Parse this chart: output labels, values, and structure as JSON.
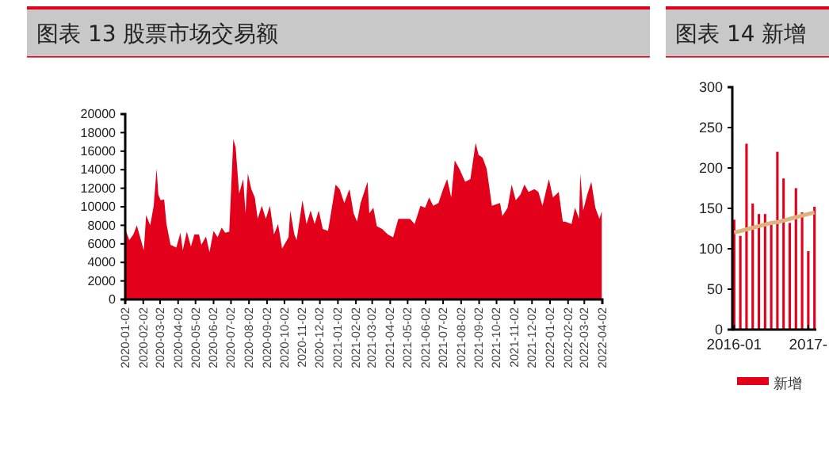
{
  "chart_data": [
    {
      "type": "area",
      "title": "图表 13 股票市场交易额",
      "color": "#e2001a",
      "x": [
        "2020-01-02",
        "2020-01-09",
        "2020-01-16",
        "2020-01-22",
        "2020-02-03",
        "2020-02-07",
        "2020-02-14",
        "2020-02-20",
        "2020-02-25",
        "2020-02-28",
        "2020-03-03",
        "2020-03-09",
        "2020-03-13",
        "2020-03-20",
        "2020-03-30",
        "2020-04-06",
        "2020-04-10",
        "2020-04-17",
        "2020-04-24",
        "2020-04-30",
        "2020-05-08",
        "2020-05-12",
        "2020-05-20",
        "2020-05-26",
        "2020-06-02",
        "2020-06-09",
        "2020-06-16",
        "2020-06-22",
        "2020-06-29",
        "2020-07-06",
        "2020-07-10",
        "2020-07-16",
        "2020-07-23",
        "2020-07-27",
        "2020-07-31",
        "2020-08-06",
        "2020-08-12",
        "2020-08-17",
        "2020-08-24",
        "2020-08-31",
        "2020-09-07",
        "2020-09-14",
        "2020-09-21",
        "2020-09-28",
        "2020-10-09",
        "2020-10-12",
        "2020-10-19",
        "2020-10-23",
        "2020-11-02",
        "2020-11-09",
        "2020-11-16",
        "2020-11-23",
        "2020-11-30",
        "2020-12-07",
        "2020-12-16",
        "2020-12-21",
        "2020-12-29",
        "2021-01-05",
        "2021-01-13",
        "2021-01-20",
        "2021-01-22",
        "2021-01-29",
        "2021-02-04",
        "2021-02-10",
        "2021-02-22",
        "2021-02-25",
        "2021-03-04",
        "2021-03-10",
        "2021-03-19",
        "2021-03-29",
        "2021-04-07",
        "2021-04-16",
        "2021-04-26",
        "2021-05-06",
        "2021-05-14",
        "2021-05-24",
        "2021-06-01",
        "2021-06-08",
        "2021-06-15",
        "2021-06-24",
        "2021-07-02",
        "2021-07-09",
        "2021-07-16",
        "2021-07-22",
        "2021-07-30",
        "2021-08-09",
        "2021-08-18",
        "2021-08-27",
        "2021-09-01",
        "2021-09-08",
        "2021-09-15",
        "2021-09-24",
        "2021-10-08",
        "2021-10-12",
        "2021-10-21",
        "2021-10-28",
        "2021-11-04",
        "2021-11-12",
        "2021-11-19",
        "2021-11-26",
        "2021-12-06",
        "2021-12-13",
        "2021-12-20",
        "2021-12-31",
        "2022-01-07",
        "2022-01-17",
        "2022-01-24",
        "2022-01-28",
        "2022-02-08",
        "2022-02-14",
        "2022-02-21",
        "2022-02-23",
        "2022-02-28",
        "2022-03-07",
        "2022-03-14",
        "2022-03-21",
        "2022-03-28",
        "2022-04-01"
      ],
      "values": [
        7600,
        6400,
        7000,
        8000,
        5300,
        9100,
        8000,
        10100,
        14100,
        11300,
        10700,
        10800,
        8150,
        5900,
        5600,
        7200,
        5300,
        7300,
        5700,
        7000,
        7000,
        5900,
        6800,
        5100,
        7400,
        6700,
        7750,
        7200,
        7300,
        17300,
        16400,
        11400,
        13000,
        9300,
        13600,
        11900,
        11000,
        8700,
        10100,
        8700,
        10100,
        7000,
        8150,
        5500,
        6700,
        9600,
        7000,
        6400,
        10700,
        8150,
        9600,
        8150,
        9600,
        7600,
        7400,
        9300,
        12400,
        11900,
        10400,
        11600,
        11900,
        9300,
        8400,
        10400,
        12700,
        9300,
        9900,
        7900,
        7600,
        7000,
        6700,
        8700,
        8700,
        8700,
        8150,
        10100,
        9900,
        11000,
        10100,
        10400,
        11900,
        13000,
        11000,
        15000,
        14100,
        12700,
        13000,
        16900,
        15600,
        15300,
        14100,
        10100,
        10400,
        9000,
        9900,
        12400,
        10700,
        11300,
        12400,
        11600,
        11900,
        11600,
        10100,
        13000,
        11000,
        11600,
        8400,
        8400,
        8150,
        9900,
        8700,
        13600,
        9600,
        11300,
        12700,
        9900,
        8700,
        9500
      ],
      "xlim": [
        "2020-01-02",
        "2022-04-02"
      ],
      "xticks": [
        "2020-01-02",
        "2020-02-02",
        "2020-03-02",
        "2020-04-02",
        "2020-05-02",
        "2020-06-02",
        "2020-07-02",
        "2020-08-02",
        "2020-09-02",
        "2020-10-02",
        "2020-11-02",
        "2020-12-02",
        "2021-01-02",
        "2021-02-02",
        "2021-03-02",
        "2021-04-02",
        "2021-05-02",
        "2021-06-02",
        "2021-07-02",
        "2021-08-02",
        "2021-09-02",
        "2021-10-02",
        "2021-11-02",
        "2021-12-02",
        "2022-01-02",
        "2022-02-02",
        "2022-03-02",
        "2022-04-02"
      ],
      "ylim": [
        0,
        20000
      ],
      "yticks": [
        0,
        2000,
        4000,
        6000,
        8000,
        10000,
        12000,
        14000,
        16000,
        18000,
        20000
      ]
    },
    {
      "type": "bar",
      "title": "图表 14 新增",
      "categories": [
        "2016-01",
        null,
        null,
        null,
        null,
        null,
        null,
        null,
        null,
        null,
        null,
        null,
        "2017-",
        null
      ],
      "series": [
        {
          "name": "新增",
          "color": "#e2001a",
          "values": [
            136,
            116,
            230,
            156,
            143,
            143,
            130,
            220,
            187,
            132,
            175,
            145,
            97,
            152
          ]
        },
        {
          "type": "line",
          "color": "#dcb27e",
          "values": [
            120,
            122,
            124,
            126,
            128,
            130,
            132,
            133,
            135,
            137,
            139,
            141,
            143,
            145
          ]
        }
      ],
      "ylim": [
        0,
        300
      ],
      "yticks": [
        0,
        50,
        100,
        150,
        200,
        250,
        300
      ],
      "legend": "bottom"
    }
  ]
}
